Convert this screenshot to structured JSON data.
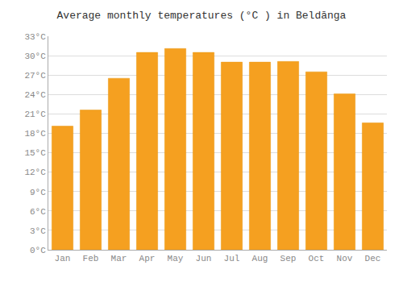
{
  "chart_data": {
    "type": "bar",
    "title": "Average monthly temperatures (°C ) in Beldānga",
    "categories": [
      "Jan",
      "Feb",
      "Mar",
      "Apr",
      "May",
      "Jun",
      "Jul",
      "Aug",
      "Sep",
      "Oct",
      "Nov",
      "Dec"
    ],
    "values": [
      19.1,
      21.6,
      26.5,
      30.5,
      31.1,
      30.5,
      29.0,
      29.0,
      29.1,
      27.5,
      24.1,
      19.6
    ],
    "color": "#F5A020",
    "ylim": [
      0,
      33
    ],
    "yticks": [
      {
        "value": 0,
        "label": "0°C"
      },
      {
        "value": 3,
        "label": "3°C"
      },
      {
        "value": 6,
        "label": "6°C"
      },
      {
        "value": 9,
        "label": "9°C"
      },
      {
        "value": 12,
        "label": "12°C"
      },
      {
        "value": 15,
        "label": "15°C"
      },
      {
        "value": 18,
        "label": "18°C"
      },
      {
        "value": 21,
        "label": "21°C"
      },
      {
        "value": 24,
        "label": "24°C"
      },
      {
        "value": 27,
        "label": "27°C"
      },
      {
        "value": 30,
        "label": "30°C"
      },
      {
        "value": 33,
        "label": "33°C"
      }
    ],
    "grid": true
  }
}
